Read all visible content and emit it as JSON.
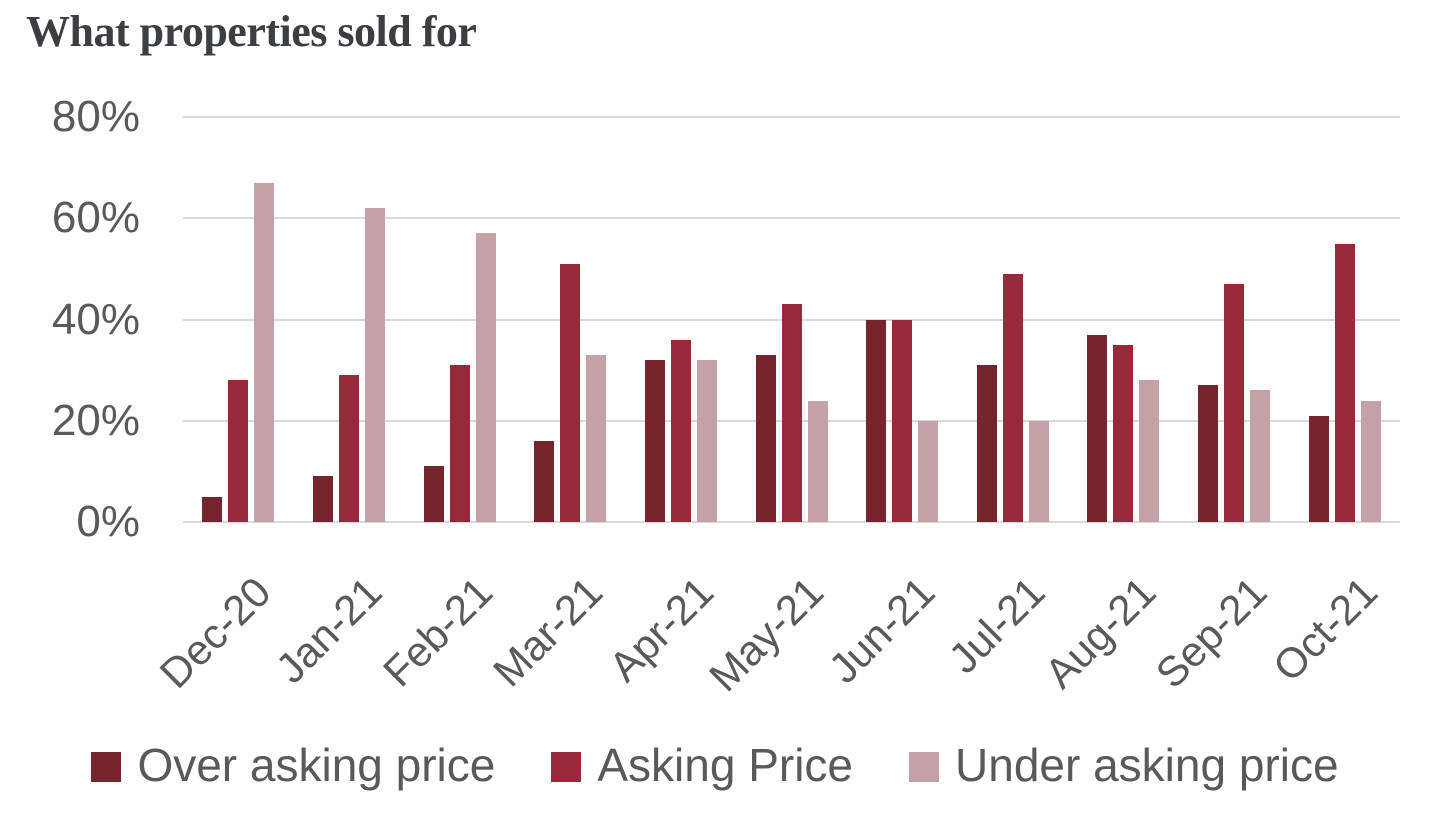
{
  "chart_data": {
    "type": "bar",
    "title": "What properties sold for",
    "categories": [
      "Dec-20",
      "Jan-21",
      "Feb-21",
      "Mar-21",
      "Apr-21",
      "May-21",
      "Jun-21",
      "Jul-21",
      "Aug-21",
      "Sep-21",
      "Oct-21"
    ],
    "series": [
      {
        "name": "Over asking price",
        "color": "#76242E",
        "values": [
          5,
          9,
          11,
          16,
          32,
          33,
          40,
          31,
          37,
          27,
          21
        ]
      },
      {
        "name": "Asking Price",
        "color": "#97293A",
        "values": [
          28,
          29,
          31,
          51,
          36,
          43,
          40,
          49,
          35,
          47,
          55
        ]
      },
      {
        "name": "Under asking price",
        "color": "#C4A1A6",
        "values": [
          67,
          62,
          57,
          33,
          32,
          24,
          20,
          20,
          28,
          26,
          24
        ]
      }
    ],
    "xlabel": "",
    "ylabel": "",
    "ylim": [
      0,
      80
    ],
    "yticks": [
      "80%",
      "60%",
      "40%",
      "20%",
      "0%"
    ],
    "ytick_values": [
      80,
      60,
      40,
      20,
      0
    ],
    "grid": true,
    "legend_position": "bottom"
  },
  "theme": {
    "title_color": "#3B3E42",
    "axis_text_color": "#595959",
    "gridline_color": "#D9D9D9",
    "background": "#FFFFFF"
  }
}
